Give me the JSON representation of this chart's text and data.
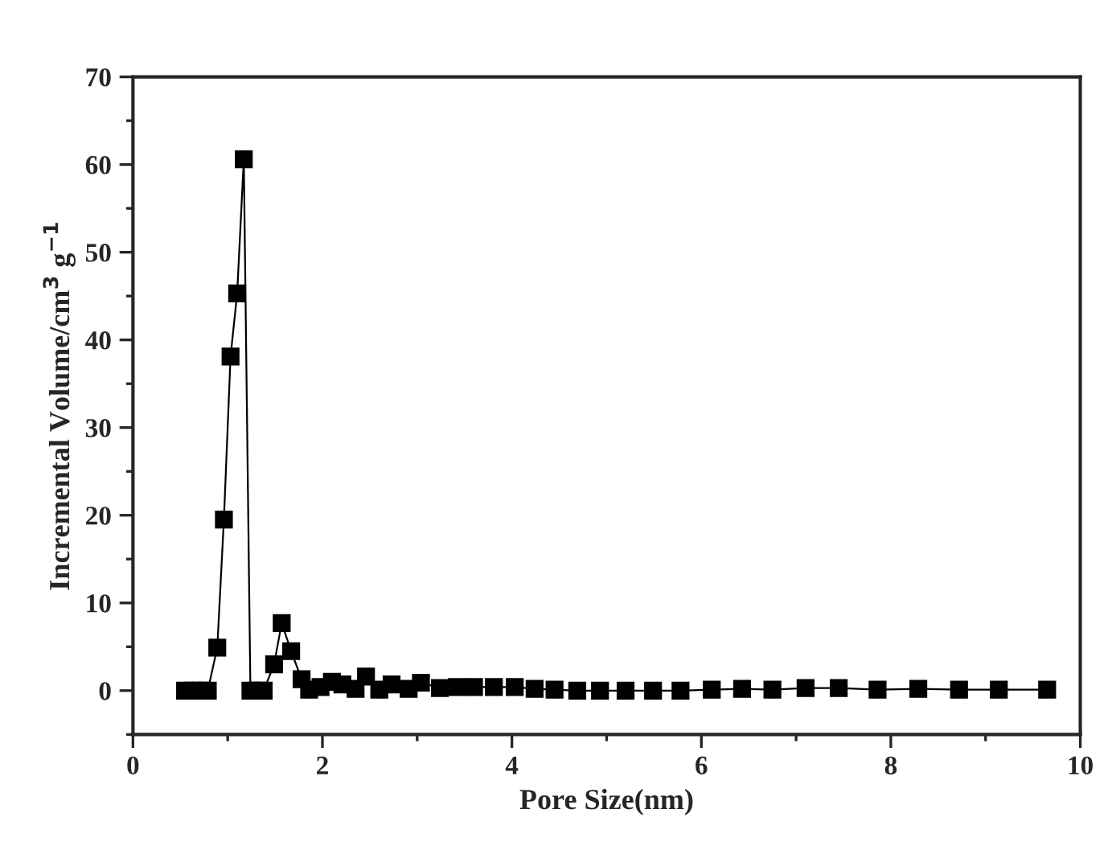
{
  "chart_data": {
    "type": "line",
    "xlabel": "Pore Size(nm)",
    "ylabel": "Incremental Volume/cm$^{3}$ g$^{−1}$",
    "x": [
      0.55,
      0.63,
      0.71,
      0.79,
      0.89,
      0.96,
      1.03,
      1.1,
      1.17,
      1.24,
      1.31,
      1.38,
      1.49,
      1.57,
      1.67,
      1.78,
      1.86,
      1.98,
      2.1,
      2.21,
      2.35,
      2.46,
      2.6,
      2.73,
      2.91,
      3.04,
      3.24,
      3.42,
      3.6,
      3.81,
      4.03,
      4.24,
      4.45,
      4.69,
      4.93,
      5.2,
      5.49,
      5.78,
      6.11,
      6.43,
      6.75,
      7.1,
      7.45,
      7.86,
      8.29,
      8.72,
      9.14,
      9.65
    ],
    "series": [
      {
        "color": "#000000",
        "values": [
          0,
          0,
          0,
          0,
          4.9,
          19.5,
          38.1,
          45.3,
          60.6,
          0,
          0,
          0,
          3.0,
          7.7,
          4.5,
          1.3,
          0.1,
          0.4,
          1.0,
          0.7,
          0.2,
          1.6,
          0.1,
          0.7,
          0.2,
          0.9,
          0.3,
          0.4,
          0.4,
          0.4,
          0.4,
          0.2,
          0.1,
          0,
          0,
          0,
          0,
          0,
          0.1,
          0.2,
          0.1,
          0.3,
          0.3,
          0.1,
          0.2,
          0.1,
          0.1,
          0.1
        ]
      }
    ],
    "xlim": [
      0,
      10
    ],
    "xticks": [
      0,
      2,
      4,
      6,
      8,
      10
    ],
    "ylim": [
      -5,
      70
    ],
    "yticks": [
      0,
      10,
      20,
      30,
      40,
      50,
      60,
      70
    ],
    "marker": "square",
    "line_style": "solid",
    "grid": false,
    "legend": false
  }
}
